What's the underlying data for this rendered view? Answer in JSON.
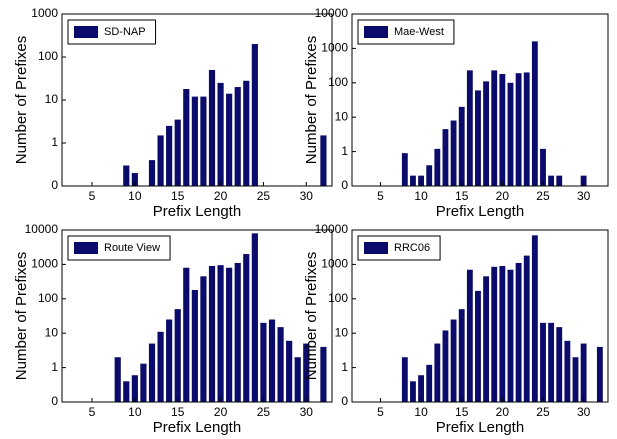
{
  "chart_data": [
    {
      "type": "bar",
      "log_y": true,
      "legend": "upper left",
      "xlabel": "Prefix Length",
      "ylabel": "Number of Prefixes",
      "x": [
        9,
        10,
        12,
        13,
        14,
        15,
        16,
        17,
        18,
        19,
        20,
        21,
        22,
        23,
        24,
        32
      ],
      "series": [
        {
          "name": "SD-NAP",
          "color": "#0b0b6b",
          "values": [
            0.3,
            0.2,
            0.4,
            1.5,
            2.5,
            3.5,
            18,
            12,
            12,
            50,
            25,
            14,
            20,
            28,
            200,
            1.5
          ]
        }
      ],
      "xlim": [
        1.5,
        33
      ],
      "xticks": [
        5,
        10,
        15,
        20,
        25,
        30
      ],
      "ylim": [
        0.1,
        1000
      ],
      "yticks": [
        {
          "value": 0.1,
          "label": "0"
        },
        1,
        10,
        100,
        1000
      ]
    },
    {
      "type": "bar",
      "log_y": true,
      "legend": "upper left",
      "xlabel": "Prefix Length",
      "ylabel": "Number of Prefixes",
      "x": [
        8,
        9,
        10,
        11,
        12,
        13,
        14,
        15,
        16,
        17,
        18,
        19,
        20,
        21,
        22,
        23,
        24,
        25,
        26,
        27,
        30
      ],
      "series": [
        {
          "name": "Mae-West",
          "color": "#0b0b6b",
          "values": [
            0.9,
            0.2,
            0.2,
            0.4,
            1.2,
            4.5,
            8,
            20,
            230,
            60,
            110,
            230,
            180,
            100,
            190,
            200,
            1600,
            1.2,
            0.2,
            0.2,
            0.2
          ]
        }
      ],
      "xlim": [
        1.5,
        33
      ],
      "xticks": [
        5,
        10,
        15,
        20,
        25,
        30
      ],
      "ylim": [
        0.1,
        10000
      ],
      "yticks": [
        {
          "value": 0.1,
          "label": "0"
        },
        1,
        10,
        100,
        1000,
        10000
      ]
    },
    {
      "type": "bar",
      "log_y": true,
      "legend": "upper left",
      "xlabel": "Prefix Length",
      "ylabel": "Number of Prefixes",
      "x": [
        8,
        9,
        10,
        11,
        12,
        13,
        14,
        15,
        16,
        17,
        18,
        19,
        20,
        21,
        22,
        23,
        24,
        25,
        26,
        27,
        28,
        29,
        30,
        32
      ],
      "series": [
        {
          "name": "Route View",
          "color": "#0b0b6b",
          "values": [
            2,
            0.4,
            0.6,
            1.3,
            5,
            11,
            25,
            50,
            800,
            180,
            450,
            900,
            950,
            800,
            1100,
            2000,
            8000,
            20,
            25,
            15,
            6,
            2,
            5,
            4
          ]
        }
      ],
      "xlim": [
        1.5,
        33
      ],
      "xticks": [
        5,
        10,
        15,
        20,
        25,
        30
      ],
      "ylim": [
        0.1,
        10000
      ],
      "yticks": [
        {
          "value": 0.1,
          "label": "0"
        },
        1,
        10,
        100,
        1000,
        10000
      ]
    },
    {
      "type": "bar",
      "log_y": true,
      "legend": "upper left",
      "xlabel": "Prefix Length",
      "ylabel": "Number of Prefixes",
      "x": [
        8,
        9,
        10,
        11,
        12,
        13,
        14,
        15,
        16,
        17,
        18,
        19,
        20,
        21,
        22,
        23,
        24,
        25,
        26,
        27,
        28,
        29,
        30,
        32
      ],
      "series": [
        {
          "name": "RRC06",
          "color": "#0b0b6b",
          "values": [
            2,
            0.4,
            0.6,
            1.2,
            5,
            12,
            25,
            50,
            700,
            170,
            450,
            850,
            900,
            700,
            1100,
            1800,
            7000,
            20,
            20,
            15,
            6,
            2,
            5,
            4
          ]
        }
      ],
      "xlim": [
        1.5,
        33
      ],
      "xticks": [
        5,
        10,
        15,
        20,
        25,
        30
      ],
      "ylim": [
        0.1,
        10000
      ],
      "yticks": [
        {
          "value": 0.1,
          "label": "0"
        },
        1,
        10,
        100,
        1000,
        10000
      ]
    }
  ]
}
